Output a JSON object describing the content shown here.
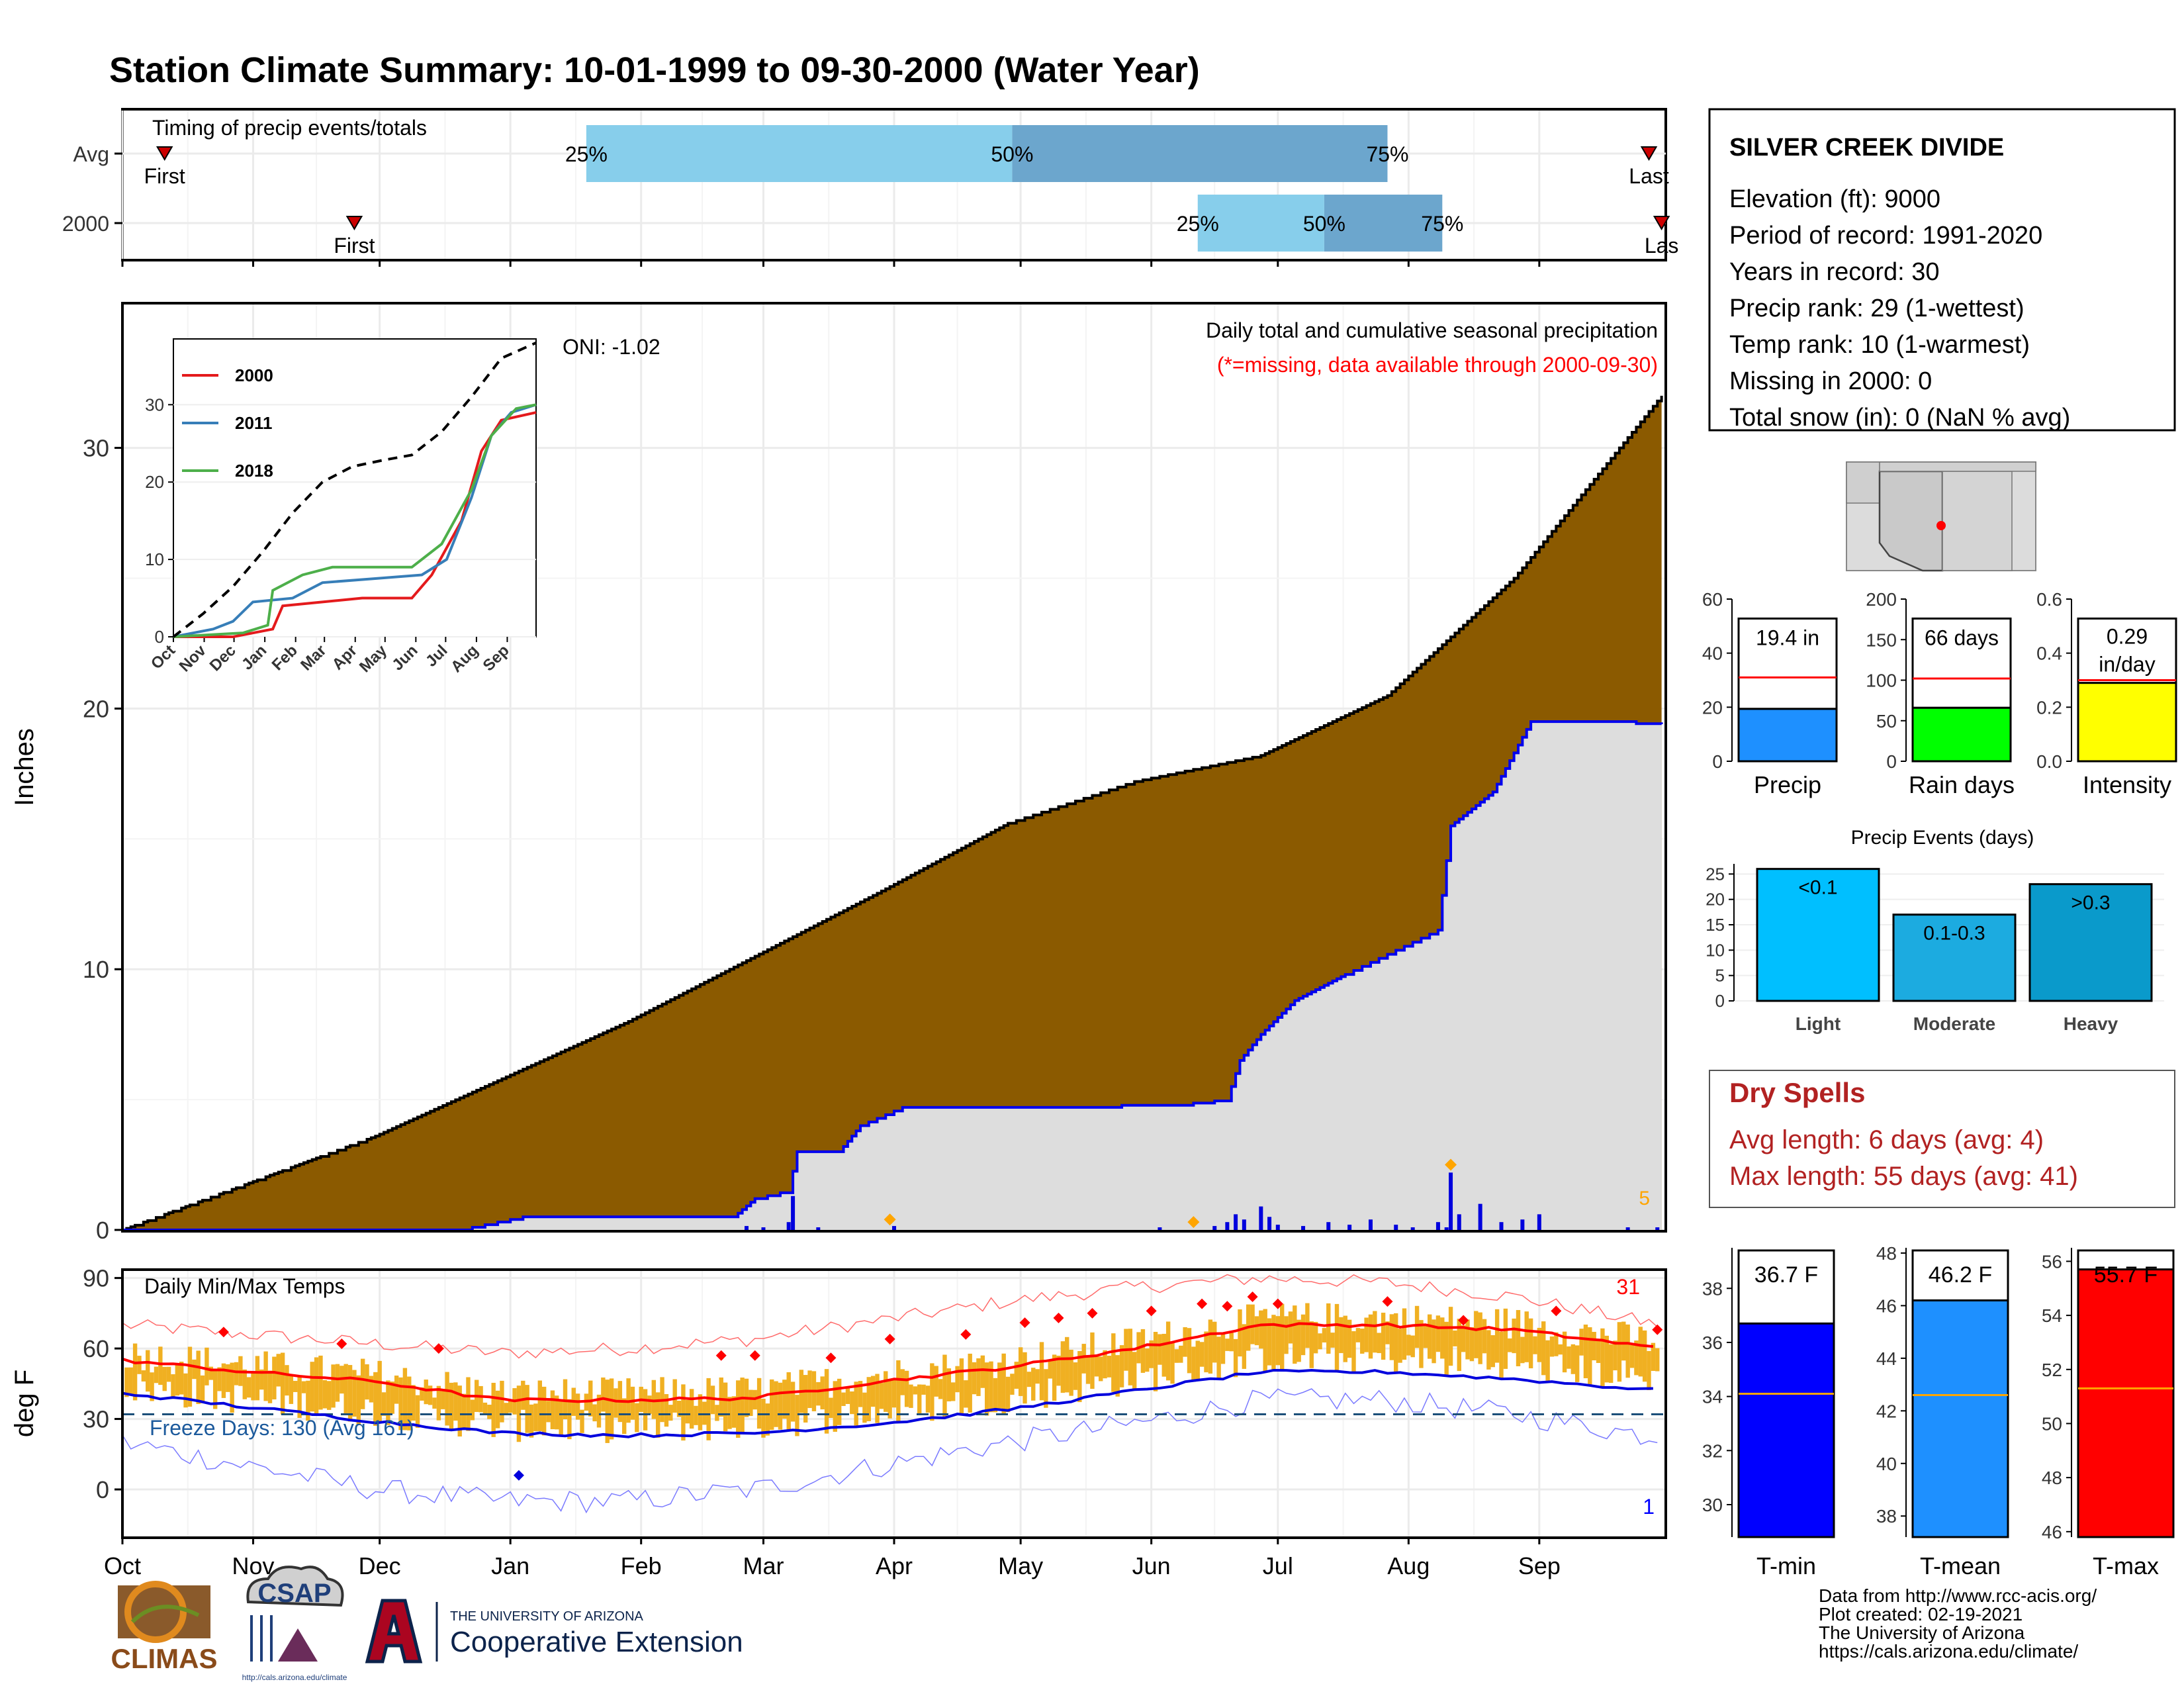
{
  "title": "Station Climate Summary: 10-01-1999 to 09-30-2000 (Water Year)",
  "colors": {
    "title": "#8b2500",
    "precip_area": "#8b5a00",
    "median_area": "#dddddd",
    "median_line": "#0000ee",
    "q_light": "#87ceeb",
    "q_dark": "#6ca6cd",
    "temp_bar": "#f0b022",
    "dry_spells": "#b22222"
  },
  "months": [
    "Oct",
    "Nov",
    "Dec",
    "Jan",
    "Feb",
    "Mar",
    "Apr",
    "May",
    "Jun",
    "Jul",
    "Aug",
    "Sep"
  ],
  "timing": {
    "label": "Timing of precip events/totals",
    "rows": [
      {
        "name": "Avg",
        "first_label": "First",
        "last_label": "Last",
        "first_day": 10,
        "last_day": 362,
        "p25_day": 110,
        "p50_day": 211,
        "p75_day": 300,
        "p25": "25%",
        "p50": "50%",
        "p75": "75%"
      },
      {
        "name": "2000",
        "first_label": "First",
        "last_label": "Las",
        "first_day": 55,
        "last_day": 365,
        "p25_day": 255,
        "p50_day": 285,
        "p75_day": 313,
        "p25": "25%",
        "p50": "50%",
        "p75": "75%"
      }
    ]
  },
  "main_chart": {
    "ylabel": "Inches",
    "y_ticks": [
      0,
      10,
      20,
      30
    ],
    "ylim": [
      0,
      35.5
    ],
    "subtitle": "Daily total and cumulative seasonal precipitation",
    "missing_note": "(*=missing, data available through 2000-09-30)",
    "oni": "ONI: -1.02",
    "corner_value": "5",
    "avg_cum_points": [
      [
        0,
        0
      ],
      [
        30,
        1.8
      ],
      [
        60,
        3.6
      ],
      [
        90,
        5.8
      ],
      [
        120,
        8.0
      ],
      [
        150,
        10.5
      ],
      [
        180,
        13.0
      ],
      [
        210,
        15.6
      ],
      [
        240,
        17.2
      ],
      [
        270,
        18.2
      ],
      [
        300,
        20.5
      ],
      [
        330,
        25.0
      ],
      [
        365,
        32.0
      ]
    ],
    "obs_cum_points": [
      [
        0,
        0
      ],
      [
        80,
        0
      ],
      [
        95,
        0.5
      ],
      [
        145,
        0.5
      ],
      [
        150,
        1.2
      ],
      [
        158,
        1.5
      ],
      [
        160,
        3.0
      ],
      [
        170,
        3.0
      ],
      [
        175,
        4.0
      ],
      [
        185,
        4.7
      ],
      [
        250,
        4.8
      ],
      [
        262,
        5.0
      ],
      [
        265,
        6.5
      ],
      [
        270,
        7.5
      ],
      [
        278,
        8.8
      ],
      [
        290,
        9.8
      ],
      [
        312,
        11.5
      ],
      [
        315,
        15.5
      ],
      [
        325,
        16.8
      ],
      [
        334,
        19.5
      ],
      [
        365,
        19.4
      ]
    ],
    "daily_bars": [
      [
        148,
        0.15
      ],
      [
        152,
        0.1
      ],
      [
        158,
        0.3
      ],
      [
        159,
        1.3
      ],
      [
        165,
        0.1
      ],
      [
        183,
        0.15
      ],
      [
        246,
        0.1
      ],
      [
        259,
        0.15
      ],
      [
        262,
        0.3
      ],
      [
        264,
        0.6
      ],
      [
        266,
        0.4
      ],
      [
        270,
        0.9
      ],
      [
        272,
        0.5
      ],
      [
        274,
        0.2
      ],
      [
        280,
        0.15
      ],
      [
        286,
        0.3
      ],
      [
        291,
        0.2
      ],
      [
        296,
        0.4
      ],
      [
        302,
        0.2
      ],
      [
        306,
        0.1
      ],
      [
        312,
        0.3
      ],
      [
        314,
        0.1
      ],
      [
        315,
        2.2
      ],
      [
        317,
        0.6
      ],
      [
        322,
        1.0
      ],
      [
        327,
        0.3
      ],
      [
        332,
        0.4
      ],
      [
        336,
        0.6
      ],
      [
        357,
        0.1
      ],
      [
        364,
        0.1
      ]
    ],
    "record_markers": [
      [
        182,
        0.4
      ],
      [
        254,
        0.3
      ],
      [
        315,
        2.5
      ]
    ]
  },
  "inset": {
    "y_ticks": [
      0,
      10,
      20,
      30
    ],
    "x_labels": [
      "Oct",
      "Nov",
      "Dec",
      "Jan",
      "Feb",
      "Mar",
      "Apr",
      "May",
      "Jun",
      "Jul",
      "Aug",
      "Sep"
    ],
    "series": [
      {
        "name": "2000",
        "color": "#e41a1c",
        "points": [
          [
            0,
            0
          ],
          [
            60,
            0
          ],
          [
            80,
            0.5
          ],
          [
            100,
            1.0
          ],
          [
            110,
            4.0
          ],
          [
            150,
            4.5
          ],
          [
            190,
            5.0
          ],
          [
            240,
            5.0
          ],
          [
            260,
            8.0
          ],
          [
            290,
            15.0
          ],
          [
            310,
            24.0
          ],
          [
            330,
            28.0
          ],
          [
            365,
            29.0
          ]
        ]
      },
      {
        "name": "2011",
        "color": "#377eb8",
        "points": [
          [
            0,
            0
          ],
          [
            40,
            1.0
          ],
          [
            60,
            2.0
          ],
          [
            80,
            4.5
          ],
          [
            120,
            5.0
          ],
          [
            150,
            7.0
          ],
          [
            200,
            7.5
          ],
          [
            250,
            8.0
          ],
          [
            275,
            10.0
          ],
          [
            300,
            18.0
          ],
          [
            320,
            26.0
          ],
          [
            340,
            29.0
          ],
          [
            365,
            30.0
          ]
        ]
      },
      {
        "name": "2018",
        "color": "#4daf4a",
        "points": [
          [
            0,
            0
          ],
          [
            70,
            0.5
          ],
          [
            95,
            1.5
          ],
          [
            100,
            6.0
          ],
          [
            130,
            8.0
          ],
          [
            160,
            9.0
          ],
          [
            240,
            9.0
          ],
          [
            270,
            12.0
          ],
          [
            300,
            19.0
          ],
          [
            320,
            26.0
          ],
          [
            345,
            29.5
          ],
          [
            365,
            30.0
          ]
        ]
      }
    ],
    "avg_points": [
      [
        0,
        0
      ],
      [
        30,
        3.0
      ],
      [
        60,
        6.5
      ],
      [
        90,
        11.0
      ],
      [
        120,
        16.0
      ],
      [
        150,
        20.0
      ],
      [
        180,
        22.0
      ],
      [
        210,
        22.8
      ],
      [
        240,
        23.5
      ],
      [
        270,
        26.5
      ],
      [
        300,
        31.0
      ],
      [
        330,
        36.0
      ],
      [
        365,
        38.0
      ]
    ]
  },
  "temp_chart": {
    "ylabel": "deg F",
    "label": "Daily Min/Max Temps",
    "y_ticks": [
      0,
      30,
      60,
      90
    ],
    "ylim": [
      -20,
      93
    ],
    "freeze_label": "Freeze Days: 130 (Avg 161)",
    "freeze_line": 32,
    "record_high_count": "31",
    "record_low_count": "1",
    "avg_max_points": [
      [
        0,
        55
      ],
      [
        30,
        50
      ],
      [
        60,
        46
      ],
      [
        90,
        38
      ],
      [
        120,
        38
      ],
      [
        150,
        39
      ],
      [
        180,
        46
      ],
      [
        210,
        52
      ],
      [
        240,
        60
      ],
      [
        270,
        70
      ],
      [
        300,
        70
      ],
      [
        330,
        68
      ],
      [
        365,
        60
      ]
    ],
    "avg_min_points": [
      [
        0,
        41
      ],
      [
        30,
        35
      ],
      [
        60,
        29
      ],
      [
        90,
        24
      ],
      [
        120,
        23
      ],
      [
        150,
        24
      ],
      [
        180,
        28
      ],
      [
        210,
        34
      ],
      [
        240,
        42
      ],
      [
        270,
        50
      ],
      [
        300,
        50
      ],
      [
        330,
        47
      ],
      [
        365,
        42
      ]
    ],
    "record_max_points": [
      [
        0,
        70
      ],
      [
        30,
        66
      ],
      [
        60,
        62
      ],
      [
        90,
        58
      ],
      [
        120,
        60
      ],
      [
        150,
        64
      ],
      [
        180,
        72
      ],
      [
        210,
        80
      ],
      [
        240,
        86
      ],
      [
        270,
        90
      ],
      [
        300,
        88
      ],
      [
        330,
        82
      ],
      [
        365,
        70
      ]
    ],
    "record_min_points": [
      [
        0,
        20
      ],
      [
        30,
        10
      ],
      [
        60,
        0
      ],
      [
        90,
        -5
      ],
      [
        120,
        -5
      ],
      [
        150,
        0
      ],
      [
        180,
        10
      ],
      [
        210,
        20
      ],
      [
        240,
        28
      ],
      [
        270,
        38
      ],
      [
        300,
        38
      ],
      [
        330,
        32
      ],
      [
        365,
        22
      ]
    ]
  },
  "station": {
    "name": "SILVER CREEK DIVIDE",
    "lines": [
      "Elevation (ft): 9000",
      "Period of record: 1991-2020",
      "Years in record: 30",
      "Precip rank: 29 (1-wettest)",
      "Temp rank: 10 (1-warmest)",
      "Missing in 2000: 0",
      "Total snow (in): 0 (NaN % avg)"
    ]
  },
  "summary_bars": [
    {
      "name": "Precip",
      "value_label": "19.4 in",
      "value": 19.4,
      "avg": 31.0,
      "color": "#1e90ff",
      "ylim": [
        0,
        60
      ],
      "ticks": [
        0,
        20,
        40,
        60
      ]
    },
    {
      "name": "Rain days",
      "value_label": "66 days",
      "value": 66,
      "avg": 102,
      "color": "#00ff00",
      "ylim": [
        0,
        200
      ],
      "ticks": [
        0,
        50,
        100,
        150,
        200
      ]
    },
    {
      "name": "Intensity",
      "value_label": "0.29 in/day",
      "value_line1": "0.29",
      "value_line2": "in/day",
      "value": 0.29,
      "avg": 0.3,
      "color": "#ffff00",
      "ylim": [
        0,
        0.6
      ],
      "ticks": [
        0.0,
        0.2,
        0.4,
        0.6
      ]
    }
  ],
  "precip_events": {
    "title": "Precip Events (days)",
    "categories": [
      "Light",
      "Moderate",
      "Heavy"
    ],
    "labels": [
      "<0.1",
      "0.1-0.3",
      ">0.3"
    ],
    "values": [
      26,
      17,
      23
    ],
    "colors": [
      "#00bfff",
      "#1cabe0",
      "#0a9acb"
    ],
    "ticks": [
      0,
      5,
      10,
      15,
      20,
      25
    ],
    "ylim": [
      0,
      27
    ]
  },
  "dry_spells": {
    "title": "Dry Spells",
    "avg_line": "Avg length: 6 days (avg: 4)",
    "max_line": "Max length: 55 days (avg: 41)"
  },
  "temp_bars": [
    {
      "name": "T-min",
      "value_label": "36.7 F",
      "value": 36.7,
      "avg": 34.1,
      "color": "#0000ff",
      "ylim": [
        28.8,
        39.5
      ],
      "ticks": [
        30,
        32,
        34,
        36,
        38
      ]
    },
    {
      "name": "T-mean",
      "value_label": "46.2 F",
      "value": 46.2,
      "avg": 42.6,
      "color": "#1e90ff",
      "ylim": [
        37.2,
        48.2
      ],
      "ticks": [
        38,
        40,
        42,
        44,
        46,
        48
      ]
    },
    {
      "name": "T-max",
      "value_label": "55.7 F",
      "value": 55.7,
      "avg": 51.3,
      "color": "#ff0000",
      "ylim": [
        45.8,
        56.5
      ],
      "ticks": [
        46,
        48,
        50,
        52,
        54,
        56
      ]
    }
  ],
  "footer": {
    "lines": [
      "Data from http://www.rcc-acis.org/",
      "Plot created: 02-19-2021",
      "The University of Arizona",
      "https://cals.arizona.edu/climate/"
    ],
    "climas": "CLIMAS",
    "csap": "CSAP",
    "csap_url": "http://cals.arizona.edu/climate",
    "ua_small": "THE UNIVERSITY OF ARIZONA",
    "ua_big": "Cooperative Extension"
  }
}
